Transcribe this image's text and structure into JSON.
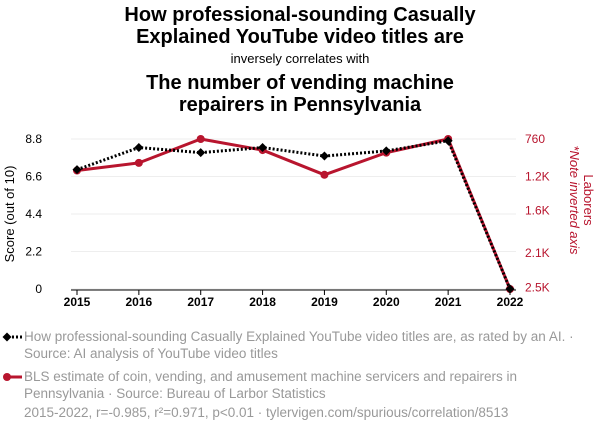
{
  "header": {
    "title_line1": "How professional-sounding Casually",
    "title_line2": "Explained YouTube video titles are",
    "connector": "inversely correlates with",
    "title2_line1": "The number of vending machine",
    "title2_line2": "repairers in Pennsylvania"
  },
  "legend": {
    "series1_text": "How professional-sounding Casually Explained YouTube video titles are, as rated by an AI. · Source: AI analysis of YouTube video titles",
    "series2_text": "BLS estimate of coin, vending, and amusement machine servicers and repairers in Pennsylvania · Source: Bureau of Larbor Statistics"
  },
  "footer": {
    "text": "2015-2022, r=-0.985, r²=0.971, p<0.01 · tylervigen.com/spurious/correlation/8513"
  },
  "colors": {
    "series1": "#000000",
    "series2": "#b8152e",
    "grid": "#eeeeee"
  },
  "chart_data": {
    "type": "line",
    "x": [
      2015,
      2016,
      2017,
      2018,
      2019,
      2020,
      2021,
      2022
    ],
    "series": [
      {
        "name": "How professional-sounding Casually Explained YouTube video titles are, as rated by an AI.",
        "axis": "left",
        "marker": "diamond",
        "style": "dotted",
        "values": [
          7.0,
          8.3,
          8.0,
          8.3,
          7.8,
          8.1,
          8.7,
          0
        ]
      },
      {
        "name": "BLS estimate of coin, vending, and amusement machine servicers and repairers in Pennsylvania",
        "axis": "right",
        "marker": "circle",
        "style": "solid",
        "values": [
          1130,
          1040,
          760,
          890,
          1180,
          920,
          760,
          2520
        ]
      }
    ],
    "xlabel": "",
    "ylabel_left": "Score (out of 10)",
    "ylabel_right": "Laborers",
    "ylabel_right_note": "*Note inverted axis",
    "left_axis": {
      "min": 0,
      "max": 8.8,
      "ticks": [
        0,
        2.2,
        4.4,
        6.6,
        8.8
      ],
      "tick_labels": [
        "0",
        "2.2",
        "4.4",
        "6.6",
        "8.8"
      ]
    },
    "right_axis": {
      "inverted": true,
      "top": 760,
      "bottom": 2520,
      "ticks": [
        760,
        1200,
        1600,
        2100,
        2500
      ],
      "tick_labels": [
        "760",
        "1.2K",
        "1.6K",
        "2.1K",
        "2.5K"
      ]
    },
    "x_tick_labels": [
      "2015",
      "2016",
      "2017",
      "2018",
      "2019",
      "2020",
      "2021",
      "2022"
    ],
    "grid": true
  }
}
